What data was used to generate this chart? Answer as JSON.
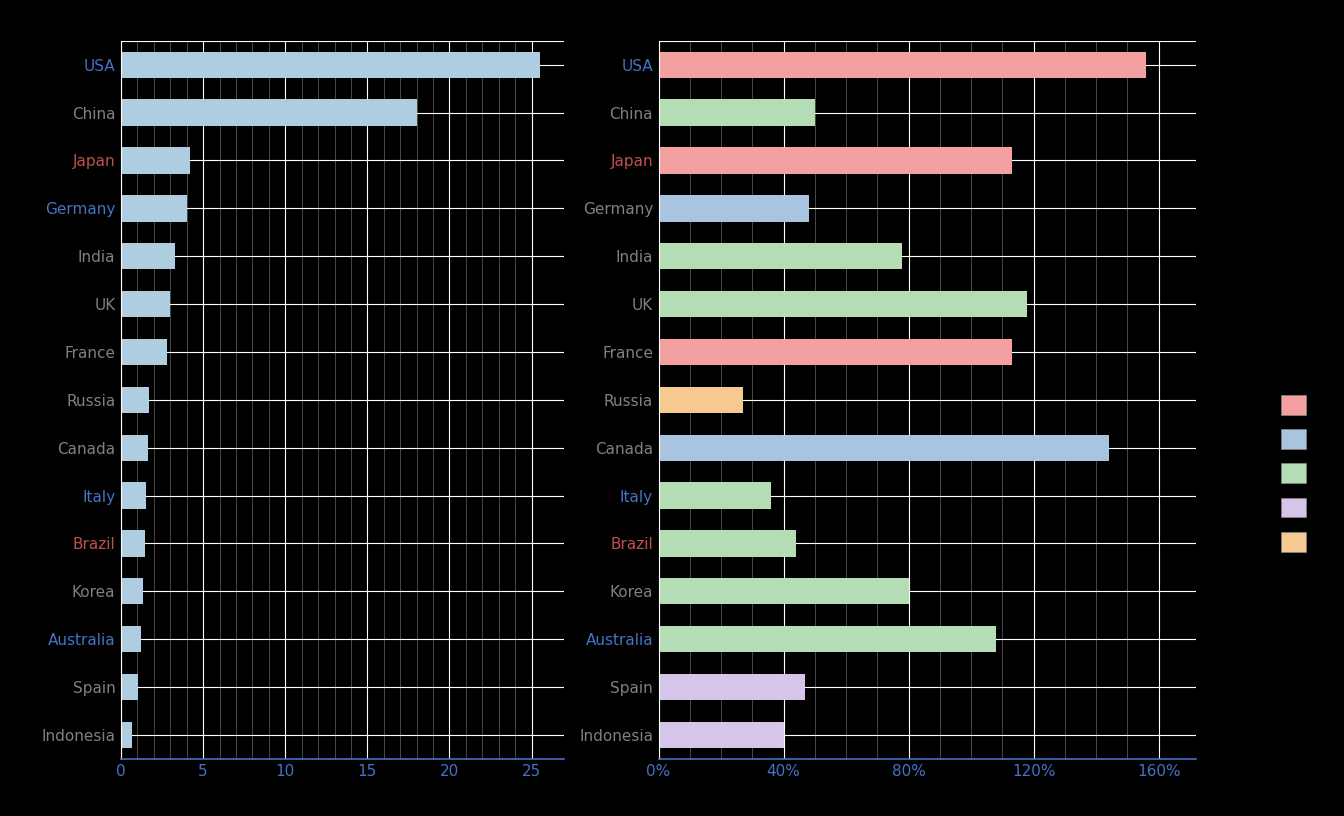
{
  "countries": [
    "USA",
    "China",
    "Japan",
    "Germany",
    "India",
    "UK",
    "France",
    "Russia",
    "Canada",
    "Italy",
    "Brazil",
    "Korea",
    "Australia",
    "Spain",
    "Indonesia"
  ],
  "gdp_share": [
    25.5,
    18.0,
    4.2,
    4.0,
    3.3,
    3.0,
    2.8,
    1.7,
    1.65,
    1.55,
    1.45,
    1.35,
    1.25,
    1.05,
    0.7
  ],
  "market_cap_gdp": [
    1.56,
    0.5,
    1.13,
    0.48,
    0.78,
    1.18,
    1.13,
    0.27,
    1.44,
    0.36,
    0.44,
    0.8,
    1.08,
    0.47,
    0.4
  ],
  "bar_colors_right": [
    "#f4a0a0",
    "#b5ddb5",
    "#f4a0a0",
    "#a8c4e0",
    "#b5ddb5",
    "#b5ddb5",
    "#f4a0a0",
    "#f5c990",
    "#a8c4e0",
    "#b5ddb5",
    "#b5ddb5",
    "#b5ddb5",
    "#b5ddb5",
    "#d5c5e8",
    "#d5c5e8"
  ],
  "bar_color_left": "#aecde1",
  "background_color": "#000000",
  "text_colors_left": [
    "#4472c4",
    "#808080",
    "#c0504d",
    "#4472c4",
    "#808080",
    "#808080",
    "#808080",
    "#808080",
    "#808080",
    "#4472c4",
    "#c0504d",
    "#808080",
    "#4472c4",
    "#808080",
    "#808080"
  ],
  "text_colors_right": [
    "#4472c4",
    "#808080",
    "#c0504d",
    "#808080",
    "#808080",
    "#808080",
    "#808080",
    "#808080",
    "#808080",
    "#4472c4",
    "#c0504d",
    "#808080",
    "#4472c4",
    "#808080",
    "#808080"
  ],
  "tick_color": "#4472c4",
  "grid_color": "#ffffff",
  "legend_colors": [
    "#f4a0a0",
    "#a8c4e0",
    "#b5ddb5",
    "#d5c5e8",
    "#f5c990"
  ],
  "xlim_left": [
    0,
    27
  ],
  "xticks_left": [
    0,
    5,
    10,
    15,
    20,
    25
  ],
  "xlim_right": [
    0,
    1.72
  ],
  "xticks_right": [
    0.0,
    0.4,
    0.8,
    1.2,
    1.6
  ],
  "xtick_labels_right": [
    "0%",
    "40%",
    "80%",
    "120%",
    "160%"
  ]
}
